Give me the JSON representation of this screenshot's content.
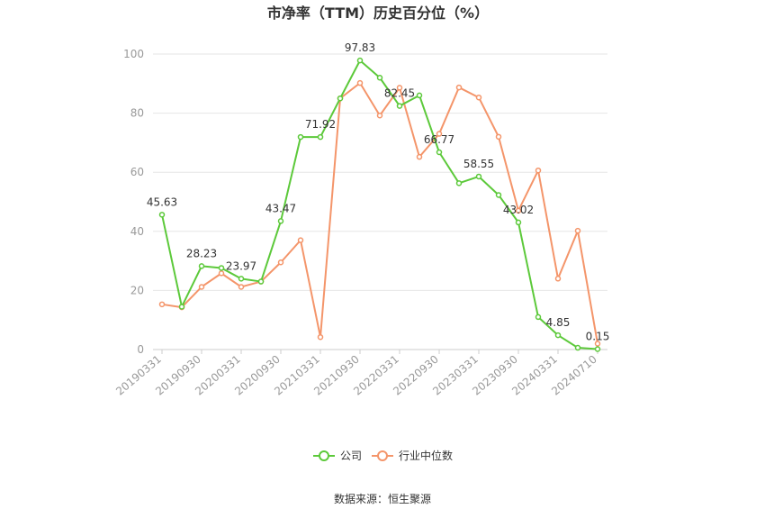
{
  "chart_data": {
    "type": "line",
    "title": "市净率（TTM）历史百分位（%）",
    "xlabel": "",
    "ylabel": "",
    "ylim": [
      0,
      100
    ],
    "yticks": [
      0,
      20,
      40,
      60,
      80,
      100
    ],
    "grid": "horizontal",
    "legend_position": "bottom",
    "x_tick_labels": [
      "20190331",
      "20190930",
      "20200331",
      "20200930",
      "20210331",
      "20210930",
      "20220331",
      "20220930",
      "20230331",
      "20230930",
      "20240331",
      "20240710"
    ],
    "x_tick_indices": [
      0,
      2,
      4,
      6,
      8,
      10,
      12,
      14,
      16,
      18,
      20,
      22
    ],
    "categories": [
      "20190331",
      "20190630",
      "20190930",
      "20191231",
      "20200331",
      "20200630",
      "20200930",
      "20201231",
      "20210331",
      "20210630",
      "20210930",
      "20211231",
      "20220331",
      "20220630",
      "20220930",
      "20221231",
      "20230331",
      "20230630",
      "20230930",
      "20231231",
      "20240331",
      "20240630",
      "20240710"
    ],
    "series": [
      {
        "name": "公司",
        "color": "#5cc93a",
        "values": [
          45.63,
          14.5,
          28.23,
          27.6,
          23.97,
          23.0,
          43.47,
          71.92,
          71.92,
          85.0,
          97.83,
          92.0,
          82.45,
          86.0,
          66.77,
          56.3,
          58.55,
          52.3,
          43.02,
          11.0,
          4.85,
          0.6,
          0.15
        ],
        "labels": {
          "0": "45.63",
          "2": "28.23",
          "4": "23.97",
          "6": "43.47",
          "8": "71.92",
          "10": "97.83",
          "12": "82.45",
          "14": "66.77",
          "16": "58.55",
          "18": "43.02",
          "20": "4.85",
          "22": "0.15"
        }
      },
      {
        "name": "行业中位数",
        "color": "#f4956a",
        "values": [
          15.3,
          14.3,
          21.2,
          25.8,
          21.2,
          23.0,
          29.5,
          37.0,
          4.2,
          85.0,
          90.2,
          79.2,
          88.6,
          65.2,
          73.0,
          88.7,
          85.3,
          72.0,
          47.0,
          60.6,
          24.0,
          40.2,
          2.0
        ]
      }
    ]
  },
  "source_text": "数据来源：恒生聚源"
}
